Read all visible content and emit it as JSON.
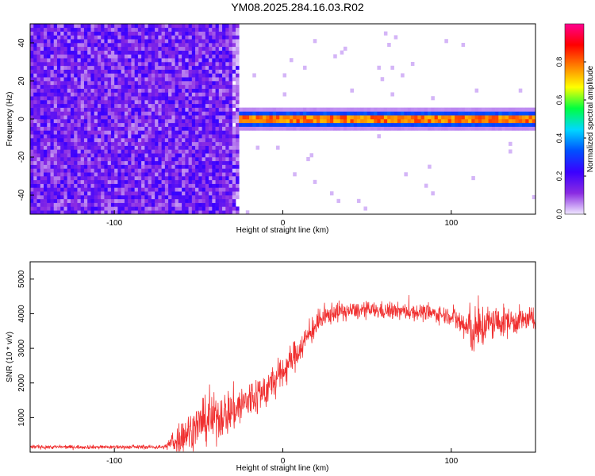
{
  "title": "YM08.2025.284.16.03.R02",
  "chart_data": [
    {
      "type": "heatmap",
      "xlabel": "Height of straight line (km)",
      "ylabel": "Frequency (Hz)",
      "xlim": [
        -150,
        150
      ],
      "ylim": [
        -50,
        50
      ],
      "xticks": [
        -100,
        0,
        100
      ],
      "xtick_labels": [
        "-100",
        "0",
        "100"
      ],
      "yticks": [
        -40,
        -20,
        0,
        20,
        40
      ],
      "ytick_labels": [
        "-40",
        "-20",
        "0",
        "20",
        "40"
      ],
      "colorbar": {
        "label": "Normalized spectral amplitude",
        "range": [
          0,
          1
        ],
        "ticks": [
          0.0,
          0.2,
          0.4,
          0.6,
          0.8
        ],
        "tick_labels": [
          "0.0",
          "0.2",
          "0.4",
          "0.6",
          "0.8"
        ],
        "colors": [
          "#f0e8ff",
          "#8a2be2",
          "#3a00ff",
          "#0050ff",
          "#00d8ff",
          "#00ff40",
          "#ffff00",
          "#ff8000",
          "#ff0000",
          "#ff0090"
        ]
      },
      "features": {
        "noise_region_x": [
          -150,
          -26
        ],
        "noise_amplitude": 0.15,
        "signal_start_x": -26,
        "signal_frequency": 0,
        "signal_amplitude": 0.95,
        "signal_bandwidth_hz": 3
      }
    },
    {
      "type": "line",
      "xlabel": "Height of straight line (km)",
      "ylabel": "SNR (10 * v/v)",
      "xlim": [
        -150,
        150
      ],
      "ylim": [
        0,
        5500
      ],
      "xticks": [
        -100,
        0,
        100
      ],
      "xtick_labels": [
        "-100",
        "0",
        "100"
      ],
      "yticks": [
        1000,
        2000,
        3000,
        4000,
        5000
      ],
      "ytick_labels": [
        "1000",
        "2000",
        "3000",
        "4000",
        "5000"
      ],
      "color": "#f03030",
      "trend": {
        "x": [
          -150,
          -70,
          -62,
          -50,
          -40,
          -30,
          -20,
          -10,
          0,
          10,
          20,
          30,
          50,
          80,
          100,
          110,
          115,
          120,
          140,
          150
        ],
        "y": [
          150,
          150,
          400,
          800,
          1000,
          1200,
          1500,
          1800,
          2300,
          3000,
          3700,
          4050,
          4100,
          4050,
          3950,
          3550,
          3450,
          3700,
          3800,
          3850
        ]
      },
      "noise_amplitude": {
        "x": [
          -150,
          -70,
          -62,
          -40,
          -20,
          0,
          20,
          40,
          100,
          110,
          115,
          125,
          150
        ],
        "y": [
          80,
          80,
          700,
          1000,
          900,
          700,
          500,
          350,
          350,
          900,
          1100,
          700,
          450
        ]
      }
    }
  ]
}
